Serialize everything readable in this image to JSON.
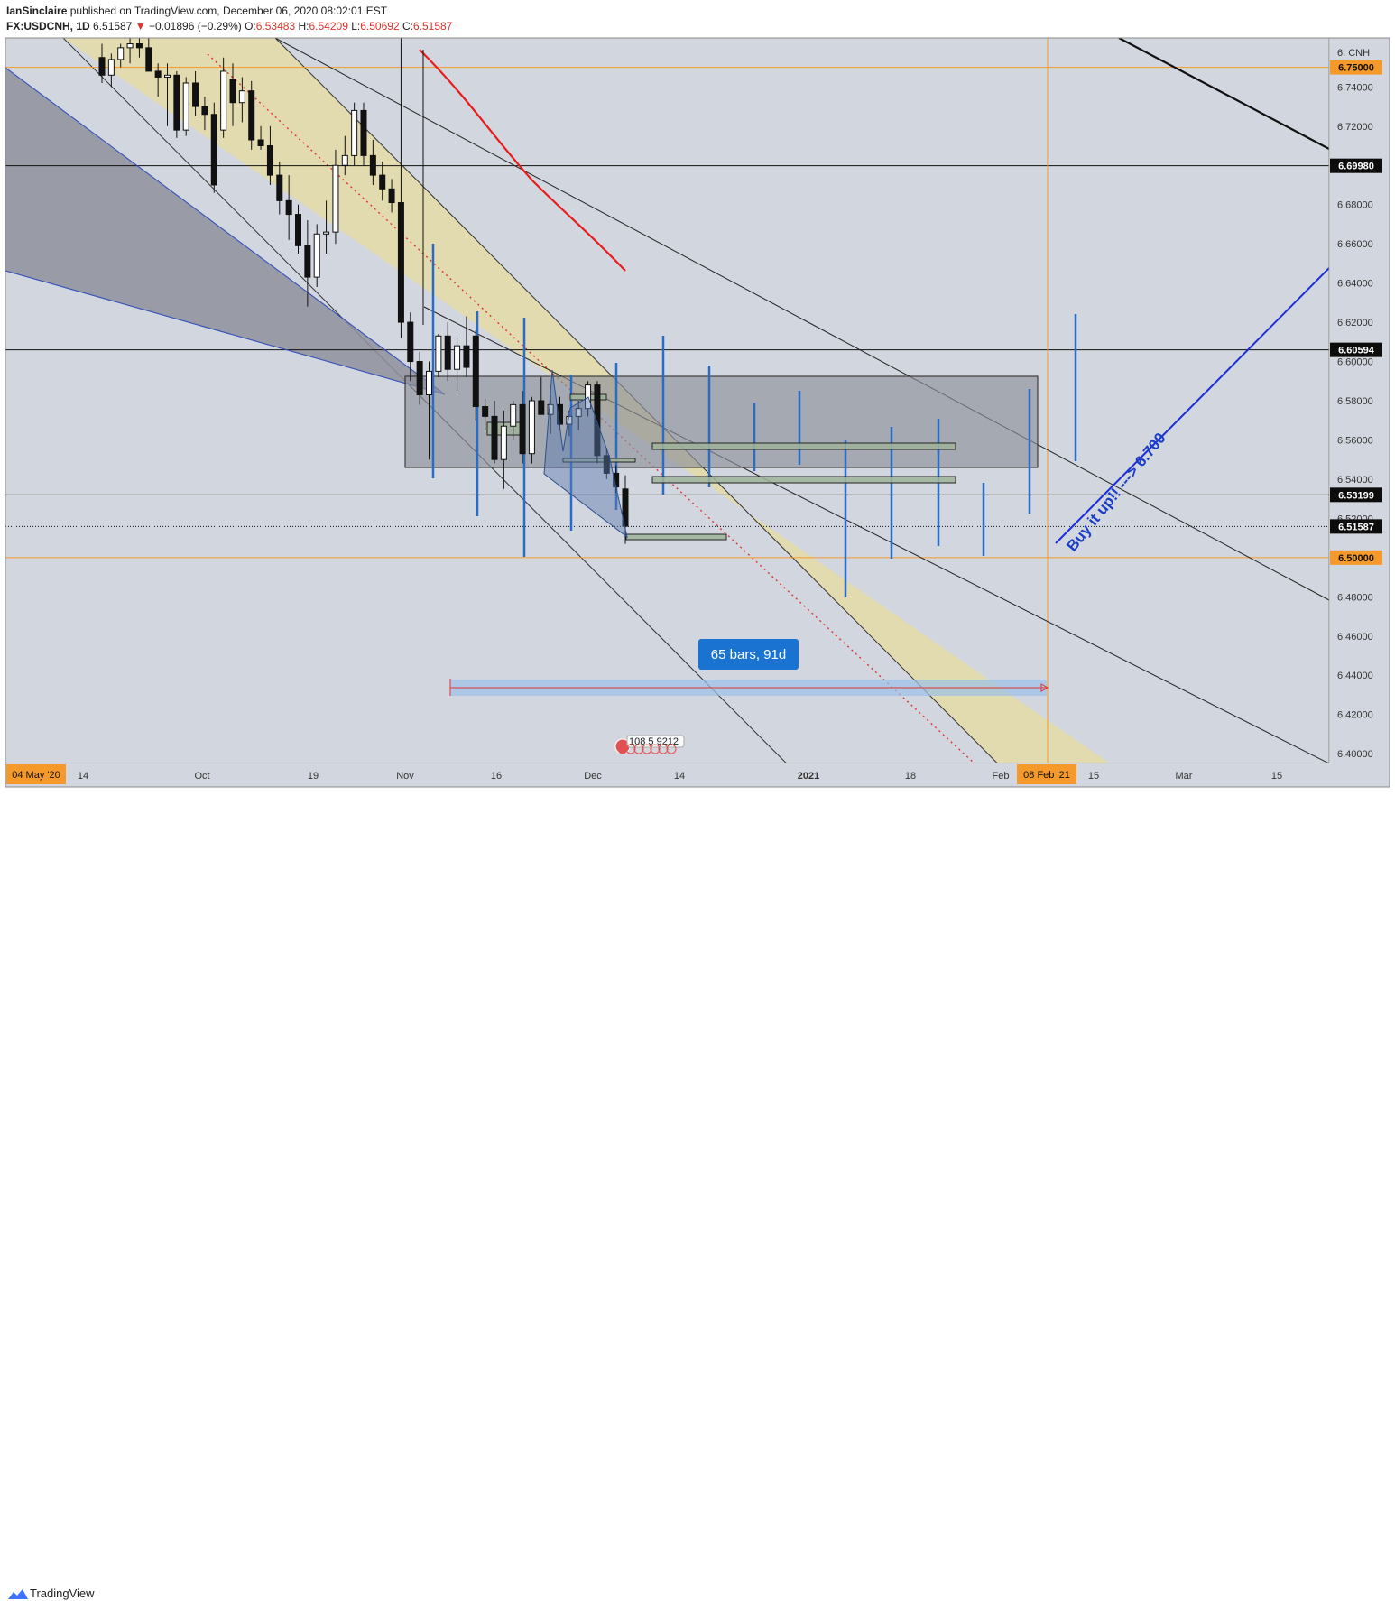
{
  "header": {
    "author": "IanSinclaire",
    "published_text": "published on TradingView.com, December 06, 2020 08:02:01 EST",
    "symbol": "FX:USDCNH, 1D",
    "last": "6.51587",
    "change": "−0.01896 (−0.29%)",
    "open_label": "O:",
    "open": "6.53483",
    "high_label": "H:",
    "high": "6.54209",
    "low_label": "L:",
    "low": "6.50692",
    "close_label": "C:",
    "close": "6.51587"
  },
  "footer": {
    "brand": "TradingView"
  },
  "chart_data": {
    "type": "candlestick",
    "currency_label": "CNH",
    "y_range": [
      6.395,
      6.765
    ],
    "y_ticks": [
      "6.74000",
      "6.72000",
      "6.70000",
      "6.68000",
      "6.66000",
      "6.64000",
      "6.62000",
      "6.60000",
      "6.58000",
      "6.56000",
      "6.54000",
      "6.52000",
      "6.50000",
      "6.48000",
      "6.46000",
      "6.44000",
      "6.42000",
      "6.40000"
    ],
    "price_labels": [
      {
        "value": "6.75000",
        "price": 6.75,
        "style": "orange"
      },
      {
        "value": "6.69980",
        "price": 6.6998,
        "style": "dark"
      },
      {
        "value": "6.60594",
        "price": 6.60594,
        "style": "dark"
      },
      {
        "value": "6.53199",
        "price": 6.53199,
        "style": "dark"
      },
      {
        "value": "6.51587",
        "price": 6.51587,
        "style": "dark"
      },
      {
        "value": "6.50000",
        "price": 6.5,
        "style": "orange"
      }
    ],
    "x_ticks": [
      "14",
      "Oct",
      "19",
      "Nov",
      "16",
      "Dec",
      "14",
      "2021",
      "18",
      "Feb",
      "15",
      "Mar",
      "15"
    ],
    "x_tick_bold": "2021",
    "x_start_label": "04 May '20",
    "x_marker_label": "08 Feb '21",
    "range_label": "65 bars, 91d",
    "events_badge": "108 5 9212",
    "annotation": "Buy it up!! ---> 6.700",
    "candles": [
      {
        "o": 6.755,
        "h": 6.762,
        "l": 6.742,
        "c": 6.746
      },
      {
        "o": 6.746,
        "h": 6.757,
        "l": 6.74,
        "c": 6.754
      },
      {
        "o": 6.754,
        "h": 6.762,
        "l": 6.75,
        "c": 6.76
      },
      {
        "o": 6.76,
        "h": 6.765,
        "l": 6.752,
        "c": 6.762
      },
      {
        "o": 6.762,
        "h": 6.765,
        "l": 6.755,
        "c": 6.76
      },
      {
        "o": 6.76,
        "h": 6.765,
        "l": 6.75,
        "c": 6.748
      },
      {
        "o": 6.748,
        "h": 6.752,
        "l": 6.735,
        "c": 6.745
      },
      {
        "o": 6.745,
        "h": 6.752,
        "l": 6.72,
        "c": 6.746
      },
      {
        "o": 6.746,
        "h": 6.748,
        "l": 6.714,
        "c": 6.718
      },
      {
        "o": 6.718,
        "h": 6.745,
        "l": 6.715,
        "c": 6.742
      },
      {
        "o": 6.742,
        "h": 6.748,
        "l": 6.725,
        "c": 6.73
      },
      {
        "o": 6.73,
        "h": 6.735,
        "l": 6.718,
        "c": 6.726
      },
      {
        "o": 6.726,
        "h": 6.732,
        "l": 6.686,
        "c": 6.69
      },
      {
        "o": 6.718,
        "h": 6.755,
        "l": 6.714,
        "c": 6.748
      },
      {
        "o": 6.744,
        "h": 6.752,
        "l": 6.72,
        "c": 6.732
      },
      {
        "o": 6.732,
        "h": 6.745,
        "l": 6.722,
        "c": 6.738
      },
      {
        "o": 6.738,
        "h": 6.743,
        "l": 6.708,
        "c": 6.713
      },
      {
        "o": 6.713,
        "h": 6.72,
        "l": 6.708,
        "c": 6.71
      },
      {
        "o": 6.71,
        "h": 6.72,
        "l": 6.69,
        "c": 6.695
      },
      {
        "o": 6.695,
        "h": 6.702,
        "l": 6.675,
        "c": 6.682
      },
      {
        "o": 6.682,
        "h": 6.695,
        "l": 6.662,
        "c": 6.675
      },
      {
        "o": 6.675,
        "h": 6.68,
        "l": 6.655,
        "c": 6.659
      },
      {
        "o": 6.659,
        "h": 6.672,
        "l": 6.628,
        "c": 6.643
      },
      {
        "o": 6.643,
        "h": 6.67,
        "l": 6.638,
        "c": 6.665
      },
      {
        "o": 6.665,
        "h": 6.682,
        "l": 6.655,
        "c": 6.666
      },
      {
        "o": 6.666,
        "h": 6.708,
        "l": 6.66,
        "c": 6.7
      },
      {
        "o": 6.7,
        "h": 6.715,
        "l": 6.695,
        "c": 6.705
      },
      {
        "o": 6.705,
        "h": 6.732,
        "l": 6.7,
        "c": 6.728
      },
      {
        "o": 6.728,
        "h": 6.732,
        "l": 6.7,
        "c": 6.705
      },
      {
        "o": 6.705,
        "h": 6.713,
        "l": 6.69,
        "c": 6.695
      },
      {
        "o": 6.695,
        "h": 6.702,
        "l": 6.682,
        "c": 6.688
      },
      {
        "o": 6.688,
        "h": 6.693,
        "l": 6.676,
        "c": 6.681
      },
      {
        "o": 6.681,
        "h": 6.765,
        "l": 6.612,
        "c": 6.62
      },
      {
        "o": 6.62,
        "h": 6.625,
        "l": 6.59,
        "c": 6.6
      },
      {
        "o": 6.6,
        "h": 6.605,
        "l": 6.578,
        "c": 6.583
      },
      {
        "o": 6.583,
        "h": 6.6,
        "l": 6.55,
        "c": 6.595
      },
      {
        "o": 6.595,
        "h": 6.614,
        "l": 6.592,
        "c": 6.613
      },
      {
        "o": 6.613,
        "h": 6.62,
        "l": 6.59,
        "c": 6.596
      },
      {
        "o": 6.596,
        "h": 6.612,
        "l": 6.585,
        "c": 6.608
      },
      {
        "o": 6.608,
        "h": 6.623,
        "l": 6.592,
        "c": 6.597
      },
      {
        "o": 6.613,
        "h": 6.616,
        "l": 6.57,
        "c": 6.577
      },
      {
        "o": 6.577,
        "h": 6.581,
        "l": 6.565,
        "c": 6.572
      },
      {
        "o": 6.572,
        "h": 6.58,
        "l": 6.548,
        "c": 6.55
      },
      {
        "o": 6.55,
        "h": 6.575,
        "l": 6.535,
        "c": 6.567
      },
      {
        "o": 6.567,
        "h": 6.58,
        "l": 6.56,
        "c": 6.578
      },
      {
        "o": 6.578,
        "h": 6.585,
        "l": 6.548,
        "c": 6.553
      },
      {
        "o": 6.553,
        "h": 6.582,
        "l": 6.548,
        "c": 6.58
      },
      {
        "o": 6.58,
        "h": 6.592,
        "l": 6.574,
        "c": 6.573
      },
      {
        "o": 6.573,
        "h": 6.585,
        "l": 6.563,
        "c": 6.578
      },
      {
        "o": 6.578,
        "h": 6.582,
        "l": 6.565,
        "c": 6.568
      },
      {
        "o": 6.568,
        "h": 6.575,
        "l": 6.562,
        "c": 6.572
      },
      {
        "o": 6.572,
        "h": 6.58,
        "l": 6.565,
        "c": 6.576
      },
      {
        "o": 6.576,
        "h": 6.59,
        "l": 6.572,
        "c": 6.588
      },
      {
        "o": 6.588,
        "h": 6.59,
        "l": 6.548,
        "c": 6.552
      },
      {
        "o": 6.552,
        "h": 6.556,
        "l": 6.54,
        "c": 6.543
      },
      {
        "o": 6.543,
        "h": 6.547,
        "l": 6.533,
        "c": 6.536
      },
      {
        "o": 6.535,
        "h": 6.542,
        "l": 6.507,
        "c": 6.516
      }
    ],
    "colors": {
      "background": "#d2d6df",
      "channel_fill": "#e3dcaa",
      "wedge_fill": "#8f919c",
      "consolidation_box": "#9a9ca6",
      "moving_average": "#e81c1c",
      "orange_line": "#f59a2a",
      "blue_line": "#1c2fd6",
      "projection_bar": "#2a6bc4",
      "label_dark": "#0c0c0c",
      "label_orange": "#f59a2a",
      "range_box": "#1a73d1"
    }
  }
}
